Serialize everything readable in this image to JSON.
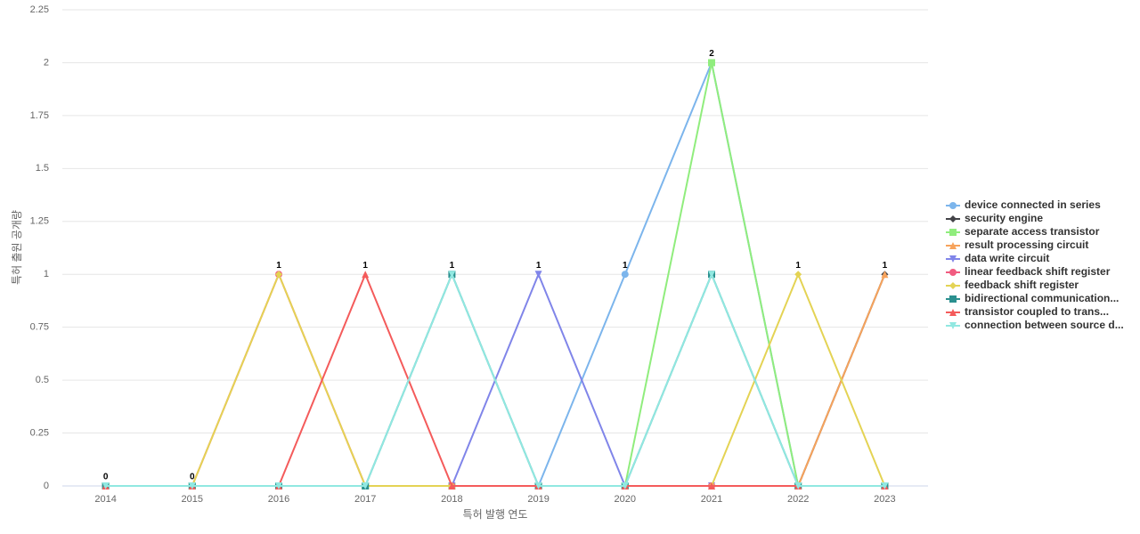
{
  "chart_data": {
    "type": "line",
    "x_label": "특허 발행 연도",
    "y_label": "특허 출원 공개량",
    "categories": [
      "2014",
      "2015",
      "2016",
      "2017",
      "2018",
      "2019",
      "2020",
      "2021",
      "2022",
      "2023"
    ],
    "ylim": [
      0,
      2.25
    ],
    "yticks": [
      0,
      0.25,
      0.5,
      0.75,
      1,
      1.25,
      1.5,
      1.75,
      2,
      2.25
    ],
    "grid": true,
    "legend": "right",
    "series": [
      {
        "name": "device connected in series",
        "color": "#7cb5ec",
        "marker": "circle",
        "values": [
          0,
          0,
          0,
          0,
          0,
          0,
          1,
          2,
          0,
          0
        ]
      },
      {
        "name": "security engine",
        "color": "#434348",
        "marker": "diamond",
        "values": [
          0,
          0,
          0,
          0,
          0,
          0,
          0,
          0,
          0,
          1
        ]
      },
      {
        "name": "separate access transistor",
        "color": "#90ed7d",
        "marker": "square",
        "values": [
          0,
          0,
          0,
          0,
          0,
          0,
          0,
          2,
          0,
          0
        ]
      },
      {
        "name": "result processing circuit",
        "color": "#f7a35c",
        "marker": "triangle",
        "values": [
          0,
          0,
          0,
          0,
          0,
          0,
          0,
          0,
          0,
          1
        ]
      },
      {
        "name": "data write circuit",
        "color": "#8085e9",
        "marker": "triangle-down",
        "values": [
          0,
          0,
          0,
          0,
          0,
          1,
          0,
          0,
          0,
          0
        ]
      },
      {
        "name": "linear feedback shift register",
        "color": "#f15c80",
        "marker": "circle",
        "values": [
          0,
          0,
          1,
          0,
          0,
          0,
          0,
          0,
          0,
          0
        ]
      },
      {
        "name": "feedback shift register",
        "color": "#e4d354",
        "marker": "diamond",
        "values": [
          0,
          0,
          1,
          0,
          0,
          0,
          0,
          0,
          1,
          0
        ]
      },
      {
        "name": "bidirectional communication...",
        "color": "#2b908f",
        "marker": "square",
        "values": [
          0,
          0,
          0,
          0,
          1,
          0,
          0,
          1,
          0,
          0
        ]
      },
      {
        "name": "transistor coupled to trans...",
        "color": "#f45b5b",
        "marker": "triangle",
        "values": [
          0,
          0,
          0,
          1,
          0,
          0,
          0,
          0,
          0,
          0
        ]
      },
      {
        "name": "connection between source d...",
        "color": "#91e8e1",
        "marker": "triangle-down",
        "values": [
          0,
          0,
          0,
          0,
          1,
          0,
          0,
          1,
          0,
          0
        ]
      }
    ]
  }
}
